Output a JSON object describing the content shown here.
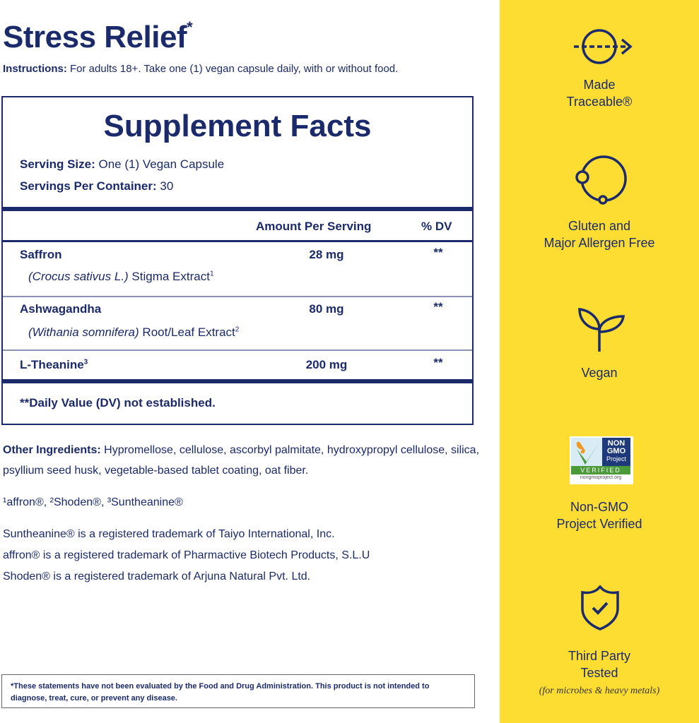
{
  "title": "Stress Relief",
  "title_mark": "*",
  "instructions": {
    "label": "Instructions:",
    "text": " For adults 18+. Take one (1) vegan capsule daily, with or without food."
  },
  "facts": {
    "title": "Supplement Facts",
    "serving_size": {
      "label": "Serving Size:",
      "value": " One (1) Vegan Capsule"
    },
    "servings_per_container": {
      "label": "Servings Per Container:",
      "value": " 30"
    },
    "col_amount": "Amount Per Serving",
    "col_dv": "% DV",
    "rows": [
      {
        "name": "Saffron",
        "sup": "",
        "sub_italic": "(Crocus sativus L.)",
        "sub_text": " Stigma Extract",
        "sub_sup": "1",
        "amount": "28 mg",
        "dv": "**"
      },
      {
        "name": "Ashwagandha",
        "sup": "",
        "sub_italic": "(Withania somnifera)",
        "sub_text": " Root/Leaf Extract",
        "sub_sup": "2",
        "amount": "80 mg",
        "dv": "**"
      },
      {
        "name": "L-Theanine",
        "sup": "3",
        "amount": "200 mg",
        "dv": "**"
      }
    ],
    "dv_note": "**Daily Value (DV) not established."
  },
  "other_ingredients": {
    "label": "Other Ingredients:",
    "text": " Hypromellose, cellulose, ascorbyl palmitate, hydroxypropyl cellulose, silica, psyllium seed husk, vegetable-based tablet coating, oat fiber."
  },
  "footnote": "¹affron®, ²Shoden®, ³Suntheanine®",
  "trademarks": [
    "Suntheanine® is a registered trademark of Taiyo International, Inc.",
    "affron® is a registered trademark of Pharmactive Biotech Products, S.L.U",
    "Shoden® is a registered trademark of Arjuna Natural Pvt. Ltd."
  ],
  "disclaimer": "*These statements have not been evaluated by the Food and Drug Administration. This product is not intended to diagnose, treat, cure, or prevent any disease.",
  "badges": [
    {
      "icon": "traceable-arrow-icon",
      "line1": "Made",
      "line2": "Traceable®"
    },
    {
      "icon": "allergen-free-icon",
      "line1": "Gluten and",
      "line2": "Major Allergen Free"
    },
    {
      "icon": "sprout-icon",
      "line1": "Vegan"
    },
    {
      "icon": "non-gmo-logo",
      "line1": "Non-GMO",
      "line2": "Project Verified",
      "logo": {
        "top": "NON",
        "mid": "GMO",
        "proj": "Project",
        "verified": "VERIFIED",
        "url": "nongmoproject.org"
      }
    },
    {
      "icon": "shield-check-icon",
      "line1": "Third Party",
      "line2": "Tested",
      "note": "(for microbes & heavy metals)"
    }
  ],
  "colors": {
    "navy": "#1b2a6b",
    "yellow": "#fedd33"
  }
}
